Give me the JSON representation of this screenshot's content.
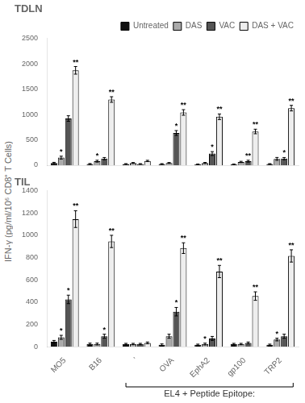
{
  "chart_data": [
    {
      "type": "bar",
      "title": "TDLN",
      "ylabel": "IFN-γ (pg/ml/10⁶ CD8⁺ T Cells)",
      "categories": [
        "MO5",
        "B16",
        "’",
        "OVA",
        "EphA2",
        "gp100",
        "TRP2"
      ],
      "series": [
        {
          "name": "Untreated",
          "color": "#111111",
          "values": [
            45,
            25,
            25,
            25,
            18,
            18,
            25
          ],
          "errors": [
            12,
            8,
            6,
            6,
            6,
            6,
            6
          ]
        },
        {
          "name": "DAS",
          "color": "#aaaaaa",
          "values": [
            150,
            80,
            45,
            45,
            45,
            65,
            125
          ],
          "errors": [
            28,
            18,
            8,
            8,
            10,
            12,
            28
          ]
        },
        {
          "name": "VAC",
          "color": "#555555",
          "values": [
            920,
            130,
            25,
            635,
            230,
            80,
            130
          ],
          "errors": [
            55,
            22,
            6,
            48,
            38,
            18,
            22
          ]
        },
        {
          "name": "DAS + VAC",
          "color": "#eeeeee",
          "values": [
            1870,
            1295,
            85,
            1040,
            955,
            665,
            1125
          ],
          "errors": [
            75,
            55,
            12,
            55,
            55,
            45,
            55
          ]
        }
      ],
      "ylim": [
        0,
        2500
      ],
      "yticks": [
        0,
        500,
        1000,
        1500,
        2000,
        2500
      ],
      "grid": false,
      "legend": "upper right",
      "tick_labels": "y",
      "annotations": [
        {
          "text": "**",
          "category": "MO5",
          "series": "DAS + VAC"
        },
        {
          "text": "**",
          "category": "B16",
          "series": "DAS + VAC"
        },
        {
          "text": "**",
          "category": "OVA",
          "series": "DAS + VAC"
        },
        {
          "text": "**",
          "category": "EphA2",
          "series": "DAS + VAC"
        },
        {
          "text": "**",
          "category": "gp100",
          "series": "DAS + VAC"
        },
        {
          "text": "**",
          "category": "TRP2",
          "series": "DAS + VAC"
        },
        {
          "text": "*",
          "category": "MO5",
          "series": "DAS"
        },
        {
          "text": "*",
          "category": "B16",
          "series": "DAS"
        },
        {
          "text": "*",
          "category": "OVA",
          "series": "VAC"
        },
        {
          "text": "*",
          "category": "EphA2",
          "series": "VAC"
        },
        {
          "text": "*",
          "category": "TRP2",
          "series": "VAC"
        },
        {
          "text": "**",
          "category": "gp100",
          "series": "VAC"
        }
      ]
    },
    {
      "type": "bar",
      "title": "TIL",
      "categories": [
        "MO5",
        "B16",
        "’",
        "OVA",
        "EphA2",
        "gp100",
        "TRP2"
      ],
      "series": [
        {
          "name": "Untreated",
          "color": "#111111",
          "values": [
            45,
            25,
            25,
            18,
            18,
            25,
            18
          ],
          "errors": [
            12,
            8,
            6,
            8,
            6,
            6,
            6
          ]
        },
        {
          "name": "DAS",
          "color": "#aaaaaa",
          "values": [
            85,
            25,
            25,
            95,
            25,
            25,
            65
          ],
          "errors": [
            18,
            8,
            6,
            18,
            8,
            6,
            12
          ]
        },
        {
          "name": "VAC",
          "color": "#555555",
          "values": [
            425,
            95,
            25,
            315,
            75,
            35,
            95
          ],
          "errors": [
            38,
            18,
            6,
            38,
            18,
            8,
            18
          ]
        },
        {
          "name": "DAS + VAC",
          "color": "#eeeeee",
          "values": [
            1145,
            945,
            35,
            885,
            675,
            455,
            815
          ],
          "errors": [
            75,
            55,
            8,
            48,
            55,
            38,
            55
          ]
        }
      ],
      "ylim": [
        0,
        1400
      ],
      "yticks": [
        0,
        200,
        400,
        600,
        800,
        1000,
        1200,
        1400
      ],
      "grid": false,
      "annotations": [
        {
          "text": "**",
          "category": "MO5",
          "series": "DAS + VAC"
        },
        {
          "text": "**",
          "category": "B16",
          "series": "DAS + VAC"
        },
        {
          "text": "**",
          "category": "OVA",
          "series": "DAS + VAC"
        },
        {
          "text": "**",
          "category": "EphA2",
          "series": "DAS + VAC"
        },
        {
          "text": "**",
          "category": "gp100",
          "series": "DAS + VAC"
        },
        {
          "text": "**",
          "category": "TRP2",
          "series": "DAS + VAC"
        },
        {
          "text": "*",
          "category": "MO5",
          "series": "DAS"
        },
        {
          "text": "*",
          "category": "MO5",
          "series": "VAC"
        },
        {
          "text": "*",
          "category": "B16",
          "series": "VAC"
        },
        {
          "text": "*",
          "category": "OVA",
          "series": "VAC"
        },
        {
          "text": "*",
          "category": "EphA2",
          "series": "DAS"
        },
        {
          "text": "*",
          "category": "TRP2",
          "series": "DAS"
        },
        {
          "text": "EL4 + Peptide Epitope:",
          "from": "’",
          "to": "TRP2"
        }
      ]
    }
  ]
}
